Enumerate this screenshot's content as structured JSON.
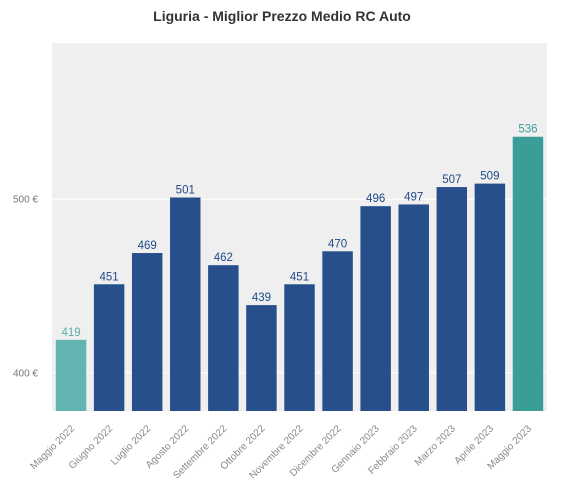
{
  "chart_data": {
    "type": "bar",
    "title": "Liguria - Miglior Prezzo Medio RC Auto",
    "xlabel": "",
    "ylabel": "",
    "categories": [
      "Maggio 2022",
      "Giugno 2022",
      "Luglio 2022",
      "Agosto 2022",
      "Settembre 2022",
      "Ottobre 2022",
      "Novembre 2022",
      "Dicembre 2022",
      "Gennaio 2023",
      "Febbraio 2023",
      "Marzo 2023",
      "Aprile 2023",
      "Maggio 2023"
    ],
    "values": [
      419,
      451,
      469,
      501,
      462,
      439,
      451,
      470,
      496,
      497,
      507,
      509,
      536
    ],
    "y_ticks": [
      {
        "value": 400,
        "label": "400 €"
      },
      {
        "value": 500,
        "label": "500 €"
      }
    ],
    "ylim": [
      378,
      590
    ],
    "grid": true,
    "colors": {
      "first": "#62b4b0",
      "middle": "#264f8c",
      "last": "#3a9e98",
      "label_first": "#5aaea9",
      "label_middle": "#1f4a87",
      "label_last": "#3a9e98",
      "background": "#efefef",
      "gridline": "#ffffff"
    }
  }
}
